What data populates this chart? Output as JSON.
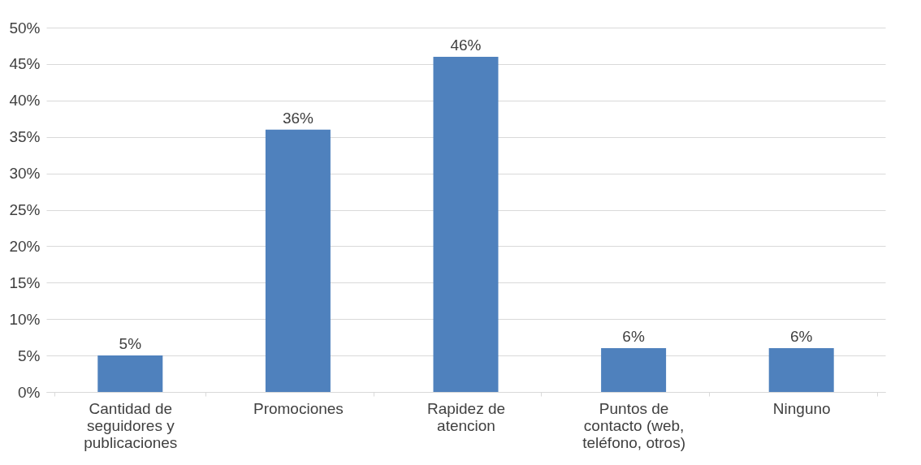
{
  "chart_data": {
    "type": "bar",
    "categories": [
      "Cantidad de seguidores y publicaciones",
      "Promociones",
      "Rapidez de atencion",
      "Puntos de contacto (web, teléfono, otros)",
      "Ninguno"
    ],
    "values": [
      5,
      36,
      46,
      6,
      6
    ],
    "color": "#4f81bd",
    "ylim": [
      0,
      50
    ],
    "yticks": [
      {
        "value": 0,
        "label": "0%"
      },
      {
        "value": 5,
        "label": "5%"
      },
      {
        "value": 10,
        "label": "10%"
      },
      {
        "value": 15,
        "label": "15%"
      },
      {
        "value": 20,
        "label": "20%"
      },
      {
        "value": 25,
        "label": "25%"
      },
      {
        "value": 30,
        "label": "30%"
      },
      {
        "value": 35,
        "label": "35%"
      },
      {
        "value": 40,
        "label": "40%"
      },
      {
        "value": 45,
        "label": "45%"
      },
      {
        "value": 50,
        "label": "50%"
      }
    ],
    "value_labels": [
      "5%",
      "36%",
      "46%",
      "6%",
      "6%"
    ],
    "grid": "y"
  }
}
